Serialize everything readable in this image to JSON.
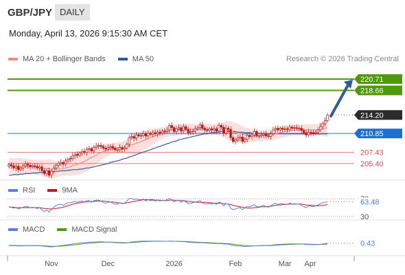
{
  "header": {
    "symbol": "GBP/JPY",
    "period": "DAILY"
  },
  "timestamp": "Monday, April 13, 2026 9:15:30 AM CET",
  "credit": "Research © 2026 Trading Central",
  "colors": {
    "ma20": "#f28b82",
    "band_fill": "#fbd5d3",
    "ma50": "#2c5d99",
    "resistance": "#4f9a0c",
    "pivot": "#1f6fd0",
    "support": "#e05050",
    "rsi": "#5b7fd6",
    "rsi_ma": "#c0181e",
    "macd": "#5b7fd6",
    "macd_signal": "#4f9a0c",
    "arrow": "#2c5d99",
    "candle": "#b71c1c"
  },
  "chart_data": [
    {
      "type": "candlestick",
      "legend": [
        {
          "label": "MA 20 + Bollinger Bands",
          "color": "#f28b82"
        },
        {
          "label": "MA 50",
          "color": "#2c5d99"
        }
      ],
      "x_tick_labels": [
        "Nov",
        "Dec",
        "2026",
        "Feb",
        "Mar",
        "Apr"
      ],
      "ylim": [
        202.9,
        223.2
      ],
      "close": [
        205.2,
        205.0,
        204.6,
        204.9,
        204.3,
        204.6,
        205.0,
        205.3,
        205.1,
        204.8,
        205.0,
        204.9,
        204.6,
        204.8,
        204.1,
        203.6,
        204.1,
        203.3,
        204.0,
        204.6,
        205.1,
        205.4,
        205.6,
        205.3,
        205.9,
        206.2,
        206.3,
        206.8,
        207.1,
        206.9,
        207.3,
        207.6,
        207.4,
        208.0,
        208.1,
        207.7,
        208.3,
        208.6,
        208.7,
        208.5,
        208.2,
        208.0,
        208.3,
        208.5,
        208.2,
        207.9,
        207.9,
        208.3,
        208.0,
        208.2,
        208.9,
        210.1,
        210.3,
        210.0,
        210.6,
        210.4,
        210.5,
        210.8,
        210.4,
        210.9,
        210.7,
        211.0,
        210.8,
        211.1,
        210.9,
        211.3,
        211.2,
        211.5,
        212.3,
        211.9,
        211.2,
        211.7,
        211.9,
        211.3,
        212.1,
        211.6,
        211.0,
        211.2,
        211.3,
        211.7,
        211.9,
        212.4,
        211.8,
        211.5,
        211.4,
        211.7,
        211.5,
        211.7,
        211.3,
        212.3,
        212.0,
        210.9,
        211.8,
        211.6,
        210.1,
        209.4,
        209.7,
        210.0,
        210.2,
        209.4,
        209.8,
        210.5,
        210.3,
        210.6,
        211.2,
        210.4,
        210.4,
        210.6,
        210.8,
        210.4,
        210.3,
        210.8,
        211.5,
        211.8,
        211.5,
        211.8,
        211.6,
        211.7,
        211.6,
        212.0,
        211.8,
        211.9,
        211.8,
        211.8,
        211.4,
        211.0,
        210.6,
        211.1,
        211.0,
        210.9,
        211.1,
        211.5,
        212.1,
        212.6,
        213.2,
        214.2
      ],
      "ma20": [
        205.0,
        205.0,
        204.9,
        204.9,
        204.8,
        204.8,
        204.8,
        204.8,
        204.8,
        204.8,
        204.8,
        204.8,
        204.7,
        204.7,
        204.6,
        204.5,
        204.5,
        204.5,
        204.4,
        204.4,
        204.4,
        204.4,
        204.5,
        204.5,
        204.6,
        204.7,
        204.8,
        205.0,
        205.1,
        205.3,
        205.4,
        205.6,
        205.8,
        206.0,
        206.3,
        206.5,
        206.7,
        206.9,
        207.2,
        207.4,
        207.6,
        207.8,
        207.9,
        208.0,
        208.1,
        208.2,
        208.2,
        208.3,
        208.3,
        208.4,
        208.5,
        208.6,
        208.8,
        208.9,
        209.1,
        209.2,
        209.4,
        209.6,
        209.7,
        209.9,
        210.1,
        210.3,
        210.4,
        210.6,
        210.7,
        210.9,
        211.0,
        211.2,
        211.3,
        211.4,
        211.4,
        211.5,
        211.5,
        211.6,
        211.6,
        211.6,
        211.6,
        211.6,
        211.6,
        211.6,
        211.6,
        211.6,
        211.6,
        211.6,
        211.6,
        211.6,
        211.6,
        211.6,
        211.6,
        211.6,
        211.6,
        211.5,
        211.5,
        211.4,
        211.3,
        211.1,
        211.0,
        210.9,
        210.8,
        210.7,
        210.6,
        210.6,
        210.5,
        210.5,
        210.4,
        210.4,
        210.4,
        210.4,
        210.5,
        210.5,
        210.6,
        210.6,
        210.7,
        210.8,
        210.9,
        211.0,
        211.1,
        211.2,
        211.3,
        211.4,
        211.4,
        211.5,
        211.5,
        211.5,
        211.5,
        211.5,
        211.5,
        211.5,
        211.5,
        211.5,
        211.5,
        211.5,
        211.6,
        211.7,
        211.8,
        211.9
      ],
      "band_width": [
        1.4,
        1.4,
        1.5,
        1.5,
        1.6,
        1.6,
        1.5,
        1.5,
        1.4,
        1.4,
        1.3,
        1.3,
        1.4,
        1.4,
        1.5,
        1.6,
        1.6,
        1.7,
        1.7,
        1.6,
        1.5,
        1.4,
        1.3,
        1.3,
        1.4,
        1.5,
        1.6,
        1.7,
        1.8,
        1.9,
        2.0,
        2.0,
        2.0,
        2.0,
        1.9,
        1.8,
        1.7,
        1.6,
        1.5,
        1.4,
        1.3,
        1.2,
        1.1,
        1.0,
        1.0,
        1.0,
        1.0,
        1.0,
        1.1,
        1.2,
        1.4,
        1.6,
        1.8,
        1.9,
        2.0,
        2.0,
        1.9,
        1.8,
        1.7,
        1.6,
        1.5,
        1.4,
        1.3,
        1.2,
        1.1,
        1.1,
        1.0,
        1.0,
        1.0,
        1.0,
        1.0,
        1.0,
        1.0,
        1.0,
        1.0,
        1.0,
        1.0,
        1.0,
        1.0,
        1.0,
        1.0,
        1.0,
        1.0,
        1.0,
        1.0,
        1.0,
        1.0,
        1.0,
        1.0,
        1.1,
        1.2,
        1.4,
        1.6,
        1.7,
        1.8,
        1.8,
        1.8,
        1.7,
        1.6,
        1.5,
        1.4,
        1.3,
        1.2,
        1.1,
        1.0,
        1.0,
        1.0,
        1.0,
        1.0,
        1.0,
        1.0,
        1.0,
        1.0,
        1.0,
        1.0,
        1.0,
        1.0,
        1.0,
        1.0,
        1.0,
        1.0,
        1.0,
        1.0,
        1.0,
        1.0,
        1.0,
        1.0,
        1.0,
        1.0,
        1.0,
        1.0,
        1.1,
        1.2,
        1.3,
        1.5,
        1.7
      ],
      "ma50": [
        203.3,
        203.3,
        203.4,
        203.4,
        203.4,
        203.5,
        203.5,
        203.6,
        203.6,
        203.6,
        203.7,
        203.7,
        203.7,
        203.8,
        203.8,
        203.8,
        203.9,
        203.9,
        203.9,
        204.0,
        204.0,
        204.0,
        204.1,
        204.1,
        204.1,
        204.2,
        204.2,
        204.3,
        204.3,
        204.3,
        204.4,
        204.4,
        204.5,
        204.6,
        204.6,
        204.7,
        204.8,
        204.9,
        205.0,
        205.1,
        205.2,
        205.3,
        205.4,
        205.6,
        205.7,
        205.8,
        205.9,
        206.0,
        206.2,
        206.3,
        206.4,
        206.6,
        206.7,
        206.9,
        207.0,
        207.2,
        207.3,
        207.5,
        207.6,
        207.8,
        207.9,
        208.1,
        208.2,
        208.4,
        208.5,
        208.7,
        208.8,
        209.0,
        209.1,
        209.3,
        209.4,
        209.5,
        209.7,
        209.8,
        209.9,
        210.0,
        210.1,
        210.2,
        210.3,
        210.4,
        210.5,
        210.6,
        210.7,
        210.8,
        210.8,
        210.9,
        211.0,
        211.0,
        211.1,
        211.1,
        211.2,
        211.2,
        211.2,
        211.2,
        211.2,
        211.2,
        211.2,
        211.1,
        211.1,
        211.1,
        211.0,
        211.0,
        211.0,
        210.9,
        210.9,
        210.9,
        210.9,
        210.8,
        210.8,
        210.8,
        210.8,
        210.8,
        210.8,
        210.8,
        210.8,
        210.8,
        210.8,
        210.8,
        210.8,
        210.8,
        210.8,
        210.8,
        210.8,
        210.8,
        210.8,
        210.8,
        210.8,
        210.8,
        210.8,
        210.8,
        210.8,
        210.8,
        210.8,
        210.8,
        210.8,
        210.8
      ],
      "levels": [
        {
          "value": 220.71,
          "label": "220.71",
          "kind": "resistance"
        },
        {
          "value": 218.66,
          "label": "218.66",
          "kind": "resistance"
        },
        {
          "value": 214.2,
          "label": "214.20",
          "kind": "last"
        },
        {
          "value": 210.85,
          "label": "210.85",
          "kind": "pivot"
        },
        {
          "value": 207.43,
          "label": "207.43",
          "kind": "support"
        },
        {
          "value": 205.4,
          "label": "205.40",
          "kind": "support"
        }
      ],
      "target_arrow": {
        "from": 214.0,
        "to": 220.6
      }
    },
    {
      "type": "line",
      "legend": [
        {
          "label": "RSI",
          "color": "#5b7fd6"
        },
        {
          "label": "9MA",
          "color": "#c0181e"
        }
      ],
      "ylim": [
        25,
        75
      ],
      "reference_lines": [
        {
          "value": 70,
          "label": "70"
        },
        {
          "value": 30,
          "label": "30"
        }
      ],
      "last_value": {
        "value": 63.48,
        "label": "63.48"
      },
      "rsi": [
        52,
        51,
        49,
        50,
        47,
        49,
        51,
        53,
        52,
        50,
        51,
        50,
        48,
        50,
        45,
        41,
        45,
        40,
        46,
        51,
        55,
        57,
        58,
        55,
        59,
        61,
        61,
        63,
        64,
        62,
        64,
        65,
        63,
        66,
        66,
        62,
        66,
        67,
        67,
        65,
        62,
        60,
        62,
        63,
        60,
        58,
        58,
        61,
        59,
        60,
        65,
        71,
        71,
        68,
        70,
        68,
        68,
        69,
        65,
        68,
        66,
        67,
        65,
        67,
        65,
        67,
        66,
        68,
        71,
        68,
        63,
        66,
        67,
        62,
        66,
        63,
        59,
        60,
        61,
        63,
        64,
        66,
        61,
        59,
        58,
        60,
        58,
        60,
        57,
        63,
        61,
        54,
        59,
        58,
        49,
        45,
        47,
        49,
        50,
        46,
        49,
        53,
        52,
        54,
        57,
        52,
        52,
        53,
        55,
        52,
        51,
        54,
        58,
        60,
        57,
        59,
        58,
        58,
        57,
        60,
        58,
        59,
        58,
        58,
        55,
        52,
        50,
        54,
        53,
        52,
        54,
        56,
        59,
        61,
        62,
        63.48
      ],
      "rsi_ma": [
        51,
        51,
        51,
        50,
        50,
        50,
        50,
        50,
        50,
        50,
        50,
        50,
        50,
        50,
        49,
        48,
        48,
        47,
        47,
        47,
        48,
        49,
        50,
        51,
        53,
        54,
        56,
        58,
        59,
        60,
        61,
        62,
        63,
        63,
        64,
        64,
        64,
        65,
        65,
        65,
        65,
        64,
        64,
        63,
        63,
        62,
        61,
        61,
        60,
        60,
        61,
        62,
        63,
        64,
        65,
        66,
        67,
        68,
        68,
        68,
        68,
        68,
        67,
        67,
        67,
        66,
        66,
        66,
        67,
        67,
        67,
        66,
        66,
        66,
        66,
        65,
        64,
        64,
        63,
        63,
        62,
        62,
        62,
        62,
        62,
        61,
        61,
        60,
        60,
        60,
        60,
        59,
        59,
        58,
        57,
        55,
        54,
        53,
        52,
        51,
        50,
        49,
        49,
        49,
        50,
        50,
        51,
        52,
        52,
        52,
        53,
        53,
        54,
        55,
        56,
        56,
        57,
        57,
        58,
        58,
        58,
        58,
        58,
        58,
        58,
        57,
        56,
        56,
        55,
        55,
        54,
        54,
        55,
        55,
        56,
        57
      ]
    },
    {
      "type": "line",
      "legend": [
        {
          "label": "MACD",
          "color": "#5b7fd6"
        },
        {
          "label": "MACD Signal",
          "color": "#4f9a0c"
        }
      ],
      "ylim": [
        -2.6,
        2.6
      ],
      "last_value": {
        "value": 0.43,
        "label": "0.43"
      },
      "macd": [
        -0.2,
        -0.22,
        -0.26,
        -0.27,
        -0.31,
        -0.31,
        -0.29,
        -0.25,
        -0.23,
        -0.24,
        -0.23,
        -0.23,
        -0.26,
        -0.26,
        -0.33,
        -0.43,
        -0.46,
        -0.55,
        -0.56,
        -0.51,
        -0.42,
        -0.32,
        -0.22,
        -0.16,
        -0.06,
        0.04,
        0.12,
        0.22,
        0.32,
        0.38,
        0.46,
        0.54,
        0.57,
        0.64,
        0.69,
        0.68,
        0.72,
        0.77,
        0.8,
        0.8,
        0.76,
        0.71,
        0.69,
        0.68,
        0.64,
        0.58,
        0.53,
        0.52,
        0.47,
        0.45,
        0.5,
        0.63,
        0.74,
        0.79,
        0.87,
        0.91,
        0.94,
        0.97,
        0.96,
        0.98,
        0.97,
        0.98,
        0.96,
        0.96,
        0.94,
        0.93,
        0.92,
        0.92,
        0.97,
        0.97,
        0.92,
        0.91,
        0.9,
        0.84,
        0.84,
        0.79,
        0.7,
        0.64,
        0.59,
        0.57,
        0.56,
        0.58,
        0.54,
        0.49,
        0.44,
        0.42,
        0.38,
        0.36,
        0.31,
        0.33,
        0.32,
        0.2,
        0.18,
        0.15,
        0.0,
        -0.17,
        -0.27,
        -0.33,
        -0.36,
        -0.44,
        -0.46,
        -0.42,
        -0.4,
        -0.36,
        -0.28,
        -0.27,
        -0.25,
        -0.22,
        -0.19,
        -0.19,
        -0.19,
        -0.15,
        -0.07,
        0.02,
        0.07,
        0.12,
        0.15,
        0.18,
        0.19,
        0.23,
        0.24,
        0.25,
        0.25,
        0.25,
        0.21,
        0.15,
        0.07,
        0.05,
        0.03,
        0.01,
        0.01,
        0.04,
        0.11,
        0.2,
        0.3,
        0.43
      ],
      "signal": [
        -0.15,
        -0.17,
        -0.19,
        -0.2,
        -0.22,
        -0.24,
        -0.25,
        -0.25,
        -0.25,
        -0.25,
        -0.25,
        -0.24,
        -0.25,
        -0.25,
        -0.27,
        -0.3,
        -0.33,
        -0.37,
        -0.41,
        -0.43,
        -0.43,
        -0.41,
        -0.38,
        -0.33,
        -0.28,
        -0.22,
        -0.15,
        -0.08,
        -0.01,
        0.07,
        0.15,
        0.22,
        0.29,
        0.36,
        0.42,
        0.47,
        0.52,
        0.57,
        0.61,
        0.65,
        0.67,
        0.68,
        0.69,
        0.69,
        0.68,
        0.67,
        0.64,
        0.62,
        0.59,
        0.56,
        0.55,
        0.56,
        0.59,
        0.63,
        0.68,
        0.73,
        0.78,
        0.82,
        0.85,
        0.88,
        0.9,
        0.92,
        0.93,
        0.94,
        0.94,
        0.94,
        0.94,
        0.93,
        0.93,
        0.94,
        0.93,
        0.93,
        0.92,
        0.9,
        0.89,
        0.87,
        0.83,
        0.8,
        0.76,
        0.72,
        0.69,
        0.66,
        0.63,
        0.61,
        0.58,
        0.55,
        0.52,
        0.49,
        0.45,
        0.42,
        0.4,
        0.36,
        0.32,
        0.29,
        0.23,
        0.15,
        0.07,
        -0.01,
        -0.08,
        -0.15,
        -0.21,
        -0.25,
        -0.28,
        -0.3,
        -0.3,
        -0.29,
        -0.28,
        -0.27,
        -0.25,
        -0.24,
        -0.22,
        -0.21,
        -0.18,
        -0.14,
        -0.1,
        -0.06,
        -0.02,
        0.02,
        0.05,
        0.09,
        0.12,
        0.15,
        0.17,
        0.19,
        0.2,
        0.2,
        0.18,
        0.16,
        0.14,
        0.12,
        0.1,
        0.09,
        0.1,
        0.12,
        0.15,
        0.2
      ]
    }
  ]
}
